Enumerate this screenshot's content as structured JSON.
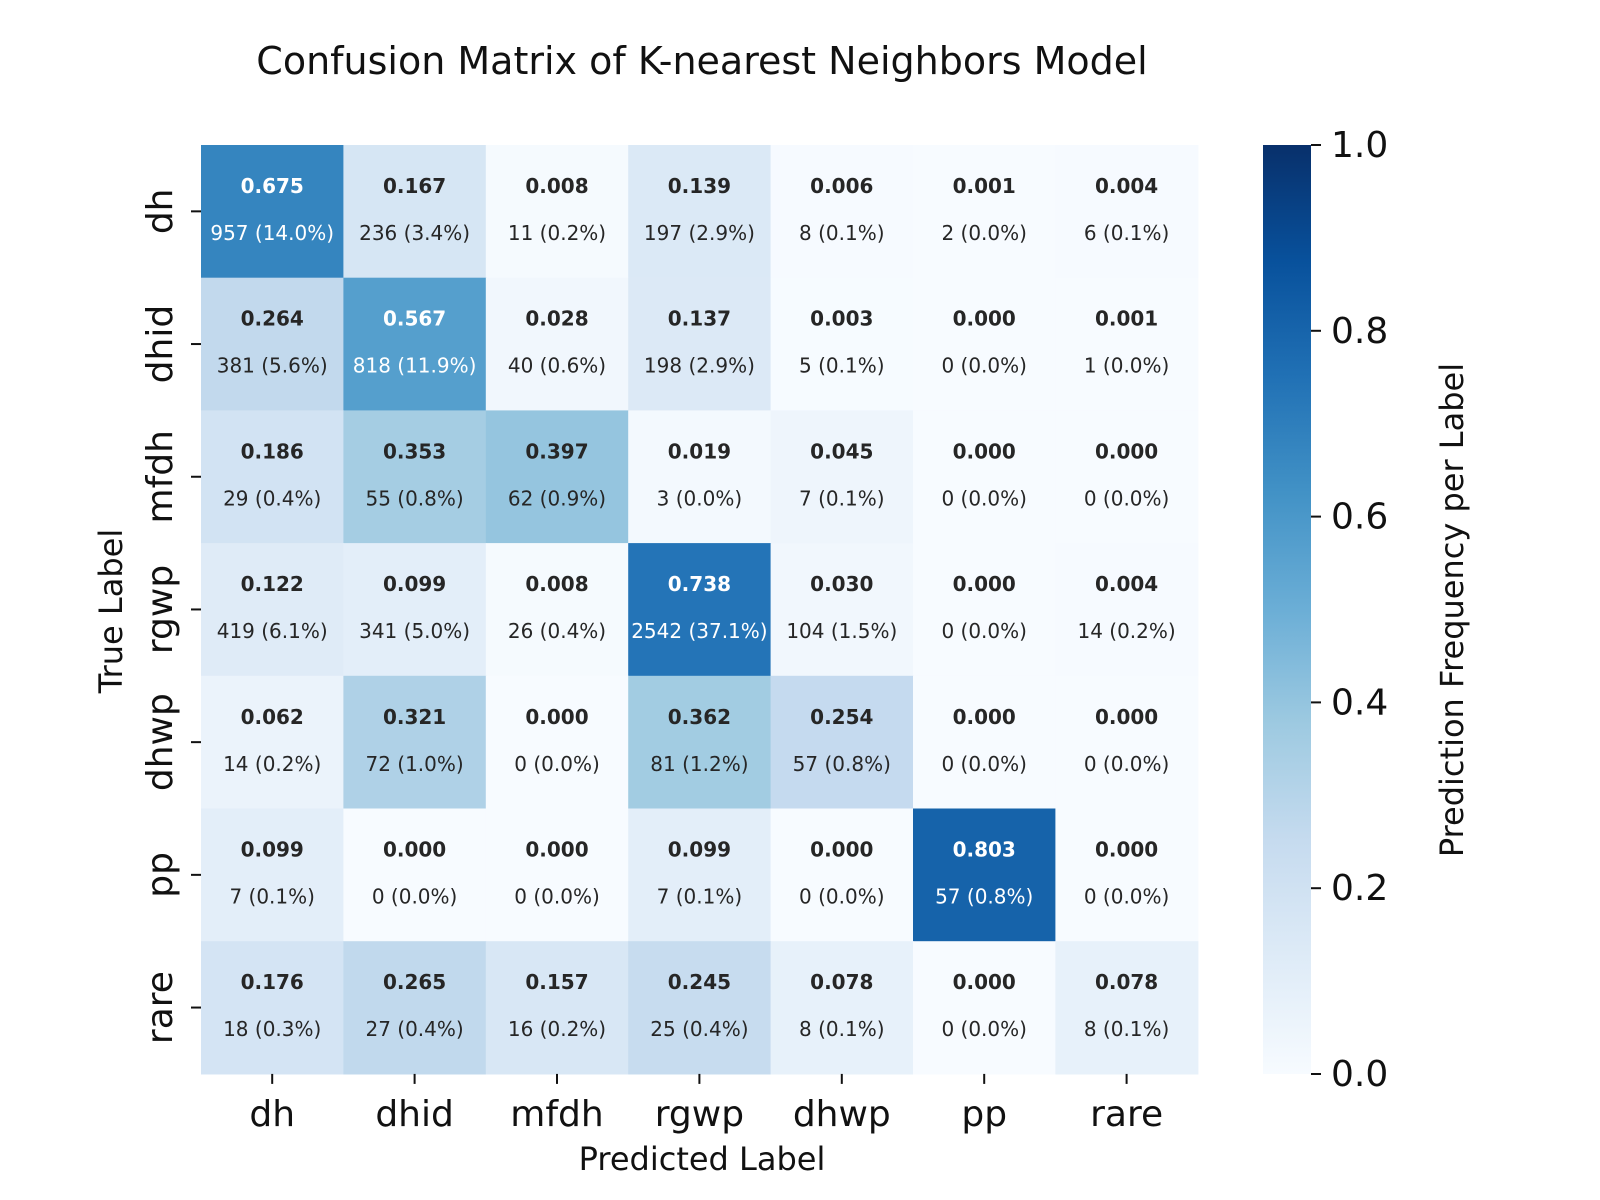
{
  "chart_data": {
    "type": "heatmap",
    "title": "Confusion Matrix of K-nearest Neighbors Model",
    "xlabel": "Predicted Label",
    "ylabel": "True Label",
    "x_categories": [
      "dh",
      "dhid",
      "mfdh",
      "rgwp",
      "dhwp",
      "pp",
      "rare"
    ],
    "y_categories": [
      "dh",
      "dhid",
      "mfdh",
      "rgwp",
      "dhwp",
      "pp",
      "rare"
    ],
    "values": [
      [
        0.675,
        0.167,
        0.008,
        0.139,
        0.006,
        0.001,
        0.004
      ],
      [
        0.264,
        0.567,
        0.028,
        0.137,
        0.003,
        0.0,
        0.001
      ],
      [
        0.186,
        0.353,
        0.397,
        0.019,
        0.045,
        0.0,
        0.0
      ],
      [
        0.122,
        0.099,
        0.008,
        0.738,
        0.03,
        0.0,
        0.004
      ],
      [
        0.062,
        0.321,
        0.0,
        0.362,
        0.254,
        0.0,
        0.0
      ],
      [
        0.099,
        0.0,
        0.0,
        0.099,
        0.0,
        0.803,
        0.0
      ],
      [
        0.176,
        0.265,
        0.157,
        0.245,
        0.078,
        0.0,
        0.078
      ]
    ],
    "value_labels": [
      [
        "0.675",
        "0.167",
        "0.008",
        "0.139",
        "0.006",
        "0.001",
        "0.004"
      ],
      [
        "0.264",
        "0.567",
        "0.028",
        "0.137",
        "0.003",
        "0.000",
        "0.001"
      ],
      [
        "0.186",
        "0.353",
        "0.397",
        "0.019",
        "0.045",
        "0.000",
        "0.000"
      ],
      [
        "0.122",
        "0.099",
        "0.008",
        "0.738",
        "0.030",
        "0.000",
        "0.004"
      ],
      [
        "0.062",
        "0.321",
        "0.000",
        "0.362",
        "0.254",
        "0.000",
        "0.000"
      ],
      [
        "0.099",
        "0.000",
        "0.000",
        "0.099",
        "0.000",
        "0.803",
        "0.000"
      ],
      [
        "0.176",
        "0.265",
        "0.157",
        "0.245",
        "0.078",
        "0.000",
        "0.078"
      ]
    ],
    "count_labels": [
      [
        "957 (14.0%)",
        "236 (3.4%)",
        "11 (0.2%)",
        "197 (2.9%)",
        "8 (0.1%)",
        "2 (0.0%)",
        "6 (0.1%)"
      ],
      [
        "381 (5.6%)",
        "818 (11.9%)",
        "40 (0.6%)",
        "198 (2.9%)",
        "5 (0.1%)",
        "0 (0.0%)",
        "1 (0.0%)"
      ],
      [
        "29 (0.4%)",
        "55 (0.8%)",
        "62 (0.9%)",
        "3 (0.0%)",
        "7 (0.1%)",
        "0 (0.0%)",
        "0 (0.0%)"
      ],
      [
        "419 (6.1%)",
        "341 (5.0%)",
        "26 (0.4%)",
        "2542 (37.1%)",
        "104 (1.5%)",
        "0 (0.0%)",
        "14 (0.2%)"
      ],
      [
        "14 (0.2%)",
        "72 (1.0%)",
        "0 (0.0%)",
        "81 (1.2%)",
        "57 (0.8%)",
        "0 (0.0%)",
        "0 (0.0%)"
      ],
      [
        "7 (0.1%)",
        "0 (0.0%)",
        "0 (0.0%)",
        "7 (0.1%)",
        "0 (0.0%)",
        "57 (0.8%)",
        "0 (0.0%)"
      ],
      [
        "18 (0.3%)",
        "27 (0.4%)",
        "16 (0.2%)",
        "25 (0.4%)",
        "8 (0.1%)",
        "0 (0.0%)",
        "8 (0.1%)"
      ]
    ],
    "colorbar": {
      "label": "Prediction Frequency per Label",
      "range": [
        0.0,
        1.0
      ],
      "ticks": [
        "0.0",
        "0.2",
        "0.4",
        "0.6",
        "0.8",
        "1.0"
      ],
      "colormap": "Blues",
      "colormap_stops": [
        "#f7fbff",
        "#deebf7",
        "#c6dbef",
        "#9ecae1",
        "#6baed6",
        "#4292c6",
        "#2171b5",
        "#08519c",
        "#08306b"
      ]
    },
    "text_dark_color": "#262626",
    "text_light_color": "#ffffff"
  }
}
